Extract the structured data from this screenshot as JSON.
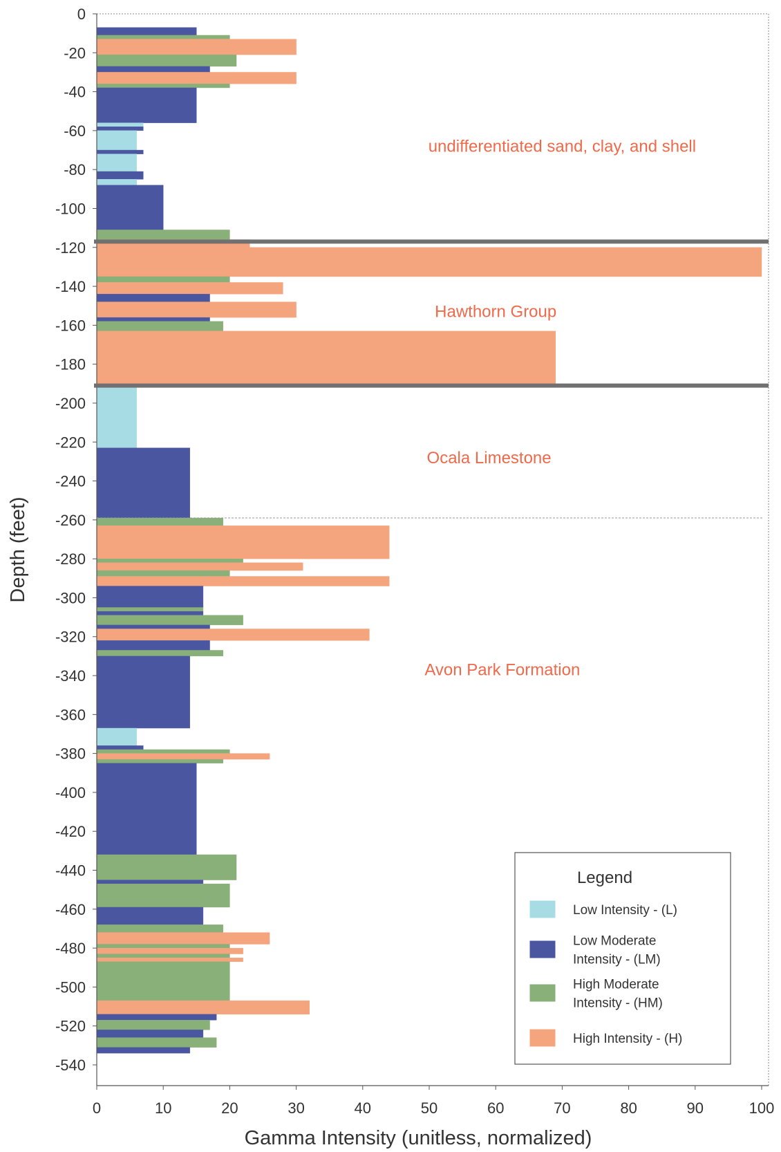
{
  "chart_data": {
    "type": "bar",
    "orientation": "horizontal",
    "xlabel": "Gamma Intensity (unitless, normalized)",
    "ylabel": "Depth (feet)",
    "xlim": [
      0,
      100
    ],
    "ylim": [
      -545,
      0
    ],
    "xticks": [
      0,
      10,
      20,
      30,
      40,
      50,
      60,
      70,
      80,
      90,
      100
    ],
    "yticks": [
      0,
      -20,
      -40,
      -60,
      -80,
      -100,
      -120,
      -140,
      -160,
      -180,
      -200,
      -220,
      -240,
      -260,
      -280,
      -300,
      -320,
      -340,
      -360,
      -380,
      -400,
      -420,
      -440,
      -460,
      -480,
      -500,
      -520,
      -540
    ],
    "grid": false,
    "categories": {
      "L": {
        "color": "#a8dce4"
      },
      "LM": {
        "color": "#4a57a0"
      },
      "HM": {
        "color": "#8ab07a"
      },
      "H": {
        "color": "#f5a57e"
      }
    },
    "segments": [
      {
        "top": -7,
        "bottom": -11,
        "class": "LM",
        "value": 15
      },
      {
        "top": -11,
        "bottom": -13,
        "class": "HM",
        "value": 20
      },
      {
        "top": -13,
        "bottom": -21,
        "class": "H",
        "value": 30
      },
      {
        "top": -21,
        "bottom": -27,
        "class": "HM",
        "value": 21
      },
      {
        "top": -27,
        "bottom": -30,
        "class": "LM",
        "value": 17
      },
      {
        "top": -30,
        "bottom": -36,
        "class": "H",
        "value": 30
      },
      {
        "top": -36,
        "bottom": -38,
        "class": "HM",
        "value": 20
      },
      {
        "top": -38,
        "bottom": -56,
        "class": "LM",
        "value": 15
      },
      {
        "top": -56,
        "bottom": -58,
        "class": "L",
        "value": 7
      },
      {
        "top": -58,
        "bottom": -60,
        "class": "LM",
        "value": 7
      },
      {
        "top": -60,
        "bottom": -70,
        "class": "L",
        "value": 6
      },
      {
        "top": -70,
        "bottom": -72,
        "class": "LM",
        "value": 7
      },
      {
        "top": -72,
        "bottom": -81,
        "class": "L",
        "value": 6
      },
      {
        "top": -81,
        "bottom": -85,
        "class": "LM",
        "value": 7
      },
      {
        "top": -85,
        "bottom": -88,
        "class": "L",
        "value": 6
      },
      {
        "top": -88,
        "bottom": -111,
        "class": "LM",
        "value": 10
      },
      {
        "top": -111,
        "bottom": -116,
        "class": "HM",
        "value": 20
      },
      {
        "top": -116,
        "bottom": -120,
        "class": "H",
        "value": 23
      },
      {
        "top": -120,
        "bottom": -135,
        "class": "H",
        "value": 100
      },
      {
        "top": -135,
        "bottom": -138,
        "class": "HM",
        "value": 20
      },
      {
        "top": -138,
        "bottom": -144,
        "class": "H",
        "value": 28
      },
      {
        "top": -144,
        "bottom": -148,
        "class": "LM",
        "value": 17
      },
      {
        "top": -148,
        "bottom": -156,
        "class": "H",
        "value": 30
      },
      {
        "top": -156,
        "bottom": -158,
        "class": "LM",
        "value": 17
      },
      {
        "top": -158,
        "bottom": -163,
        "class": "HM",
        "value": 19
      },
      {
        "top": -163,
        "bottom": -191,
        "class": "H",
        "value": 69
      },
      {
        "top": -191,
        "bottom": -223,
        "class": "L",
        "value": 6
      },
      {
        "top": -223,
        "bottom": -259,
        "class": "LM",
        "value": 14
      },
      {
        "top": -259,
        "bottom": -263,
        "class": "HM",
        "value": 19
      },
      {
        "top": -263,
        "bottom": -280,
        "class": "H",
        "value": 44
      },
      {
        "top": -280,
        "bottom": -282,
        "class": "HM",
        "value": 22
      },
      {
        "top": -282,
        "bottom": -286,
        "class": "H",
        "value": 31
      },
      {
        "top": -286,
        "bottom": -289,
        "class": "HM",
        "value": 20
      },
      {
        "top": -289,
        "bottom": -294,
        "class": "H",
        "value": 44
      },
      {
        "top": -294,
        "bottom": -305,
        "class": "LM",
        "value": 16
      },
      {
        "top": -305,
        "bottom": -307,
        "class": "HM",
        "value": 16
      },
      {
        "top": -307,
        "bottom": -309,
        "class": "LM",
        "value": 16
      },
      {
        "top": -309,
        "bottom": -314,
        "class": "HM",
        "value": 22
      },
      {
        "top": -314,
        "bottom": -316,
        "class": "LM",
        "value": 17
      },
      {
        "top": -316,
        "bottom": -322,
        "class": "H",
        "value": 41
      },
      {
        "top": -322,
        "bottom": -327,
        "class": "LM",
        "value": 17
      },
      {
        "top": -327,
        "bottom": -330,
        "class": "HM",
        "value": 19
      },
      {
        "top": -330,
        "bottom": -367,
        "class": "LM",
        "value": 14
      },
      {
        "top": -367,
        "bottom": -376,
        "class": "L",
        "value": 6
      },
      {
        "top": -376,
        "bottom": -378,
        "class": "LM",
        "value": 7
      },
      {
        "top": -378,
        "bottom": -380,
        "class": "HM",
        "value": 20
      },
      {
        "top": -380,
        "bottom": -383,
        "class": "H",
        "value": 26
      },
      {
        "top": -383,
        "bottom": -385,
        "class": "HM",
        "value": 19
      },
      {
        "top": -385,
        "bottom": -432,
        "class": "LM",
        "value": 15
      },
      {
        "top": -432,
        "bottom": -445,
        "class": "HM",
        "value": 21
      },
      {
        "top": -445,
        "bottom": -447,
        "class": "LM",
        "value": 16
      },
      {
        "top": -447,
        "bottom": -459,
        "class": "HM",
        "value": 20
      },
      {
        "top": -459,
        "bottom": -468,
        "class": "LM",
        "value": 16
      },
      {
        "top": -468,
        "bottom": -472,
        "class": "HM",
        "value": 19
      },
      {
        "top": -472,
        "bottom": -478,
        "class": "H",
        "value": 26
      },
      {
        "top": -478,
        "bottom": -480,
        "class": "HM",
        "value": 20
      },
      {
        "top": -480,
        "bottom": -483,
        "class": "H",
        "value": 22
      },
      {
        "top": -483,
        "bottom": -485,
        "class": "HM",
        "value": 20
      },
      {
        "top": -485,
        "bottom": -487,
        "class": "H",
        "value": 22
      },
      {
        "top": -487,
        "bottom": -489,
        "class": "HM",
        "value": 20
      },
      {
        "top": -489,
        "bottom": -507,
        "class": "HM",
        "value": 20
      },
      {
        "top": -507,
        "bottom": -514,
        "class": "H",
        "value": 32
      },
      {
        "top": -514,
        "bottom": -517,
        "class": "LM",
        "value": 18
      },
      {
        "top": -517,
        "bottom": -522,
        "class": "HM",
        "value": 17
      },
      {
        "top": -522,
        "bottom": -526,
        "class": "LM",
        "value": 16
      },
      {
        "top": -526,
        "bottom": -531,
        "class": "HM",
        "value": 18
      },
      {
        "top": -531,
        "bottom": -534,
        "class": "LM",
        "value": 14
      }
    ],
    "boundaries": [
      {
        "depth": -117,
        "style": "heavy"
      },
      {
        "depth": -191,
        "style": "heavy"
      },
      {
        "depth": -259,
        "style": "thin"
      }
    ],
    "formations": [
      {
        "label": "undifferentiated sand, clay, and shell",
        "depth": -68,
        "x": 70
      },
      {
        "label": "Hawthorn Group",
        "depth": -153,
        "x": 60
      },
      {
        "label": "Ocala Limestone",
        "depth": -228,
        "x": 59
      },
      {
        "label": "Avon Park Formation",
        "depth": -337,
        "x": 61
      }
    ],
    "legend": {
      "title": "Legend",
      "position": "bottom-right",
      "items": [
        {
          "class": "L",
          "lines": [
            "Low Intensity -  (L)"
          ]
        },
        {
          "class": "LM",
          "lines": [
            "Low Moderate",
            "Intensity -  (LM)"
          ]
        },
        {
          "class": "HM",
          "lines": [
            "High Moderate",
            "Intensity - (HM)"
          ]
        },
        {
          "class": "H",
          "lines": [
            "High Intensity - (H)"
          ]
        }
      ]
    }
  }
}
